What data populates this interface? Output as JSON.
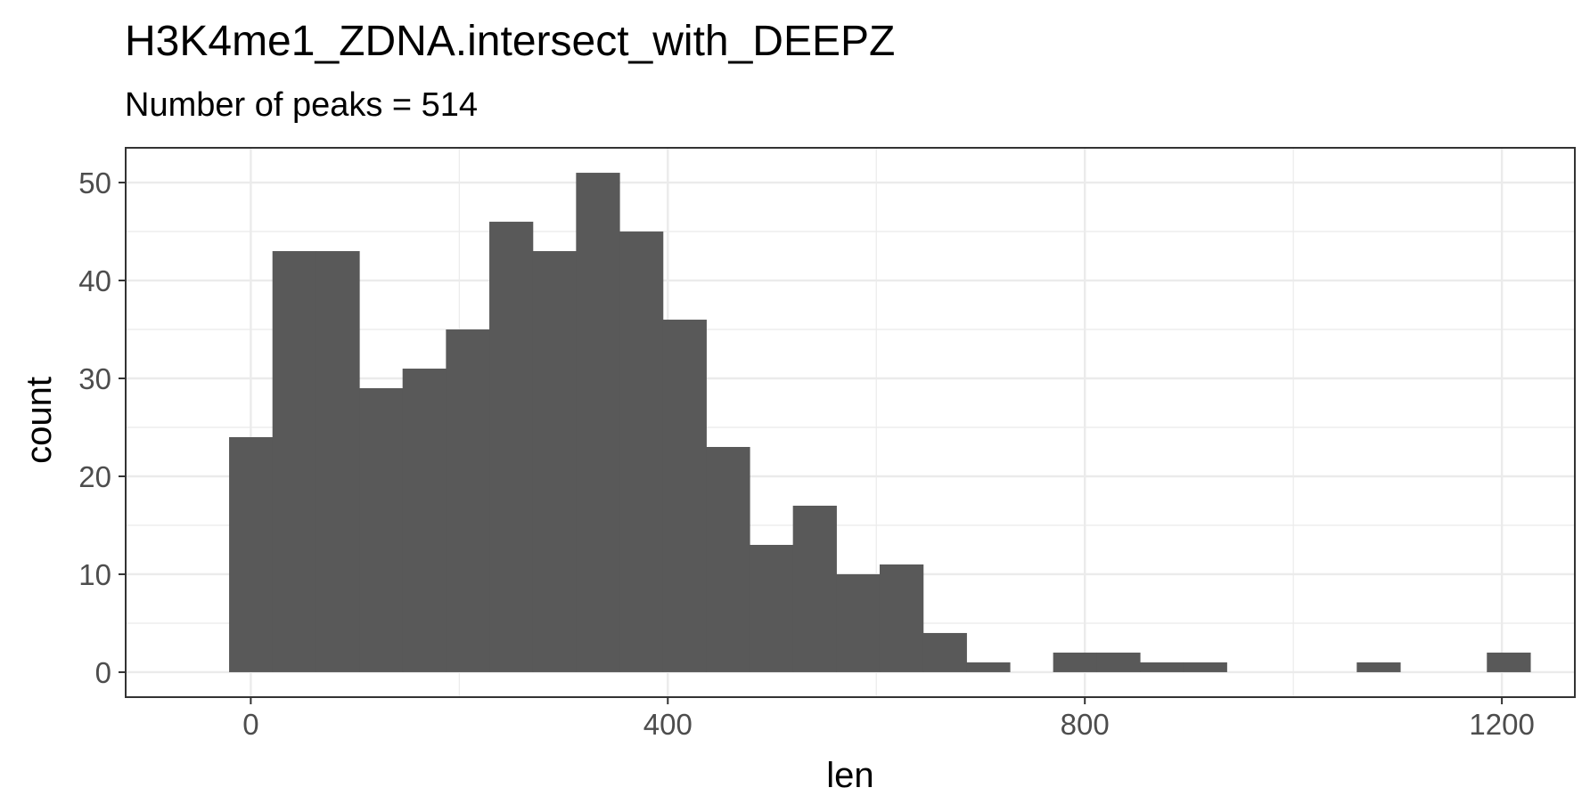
{
  "chart_data": {
    "type": "bar",
    "title": "H3K4me1_ZDNA.intersect_with_DEEPZ",
    "subtitle": "Number of peaks = 514",
    "xlabel": "len",
    "ylabel": "count",
    "xlim": [
      -120,
      1270
    ],
    "ylim": [
      -2.55,
      53.55
    ],
    "x_ticks": [
      0,
      400,
      800,
      1200
    ],
    "x_tick_labels": [
      "0",
      "400",
      "800",
      "1200"
    ],
    "y_ticks": [
      0,
      10,
      20,
      30,
      40,
      50
    ],
    "y_tick_labels": [
      "0",
      "10",
      "20",
      "30",
      "40",
      "50"
    ],
    "grid": true,
    "bin_width": 41.6,
    "bin_edges": [
      -20.8,
      20.8,
      62.4,
      104,
      145.6,
      187.2,
      228.8,
      270.4,
      312,
      353.6,
      395.2,
      436.8,
      478.4,
      520,
      561.6,
      603.2,
      644.8,
      686.4,
      728,
      769.6,
      811.2,
      852.8,
      894.4,
      936,
      977.6,
      1019.2,
      1060.8,
      1102.4,
      1144,
      1185.6,
      1227.2
    ],
    "values": [
      24,
      43,
      43,
      29,
      31,
      35,
      46,
      43,
      51,
      45,
      36,
      23,
      13,
      17,
      10,
      11,
      4,
      1,
      0,
      2,
      2,
      1,
      1,
      0,
      0,
      0,
      1,
      0,
      0,
      2
    ],
    "bar_color": "#595959",
    "panel_border_color": "#333333",
    "grid_color": "#ebebeb"
  }
}
